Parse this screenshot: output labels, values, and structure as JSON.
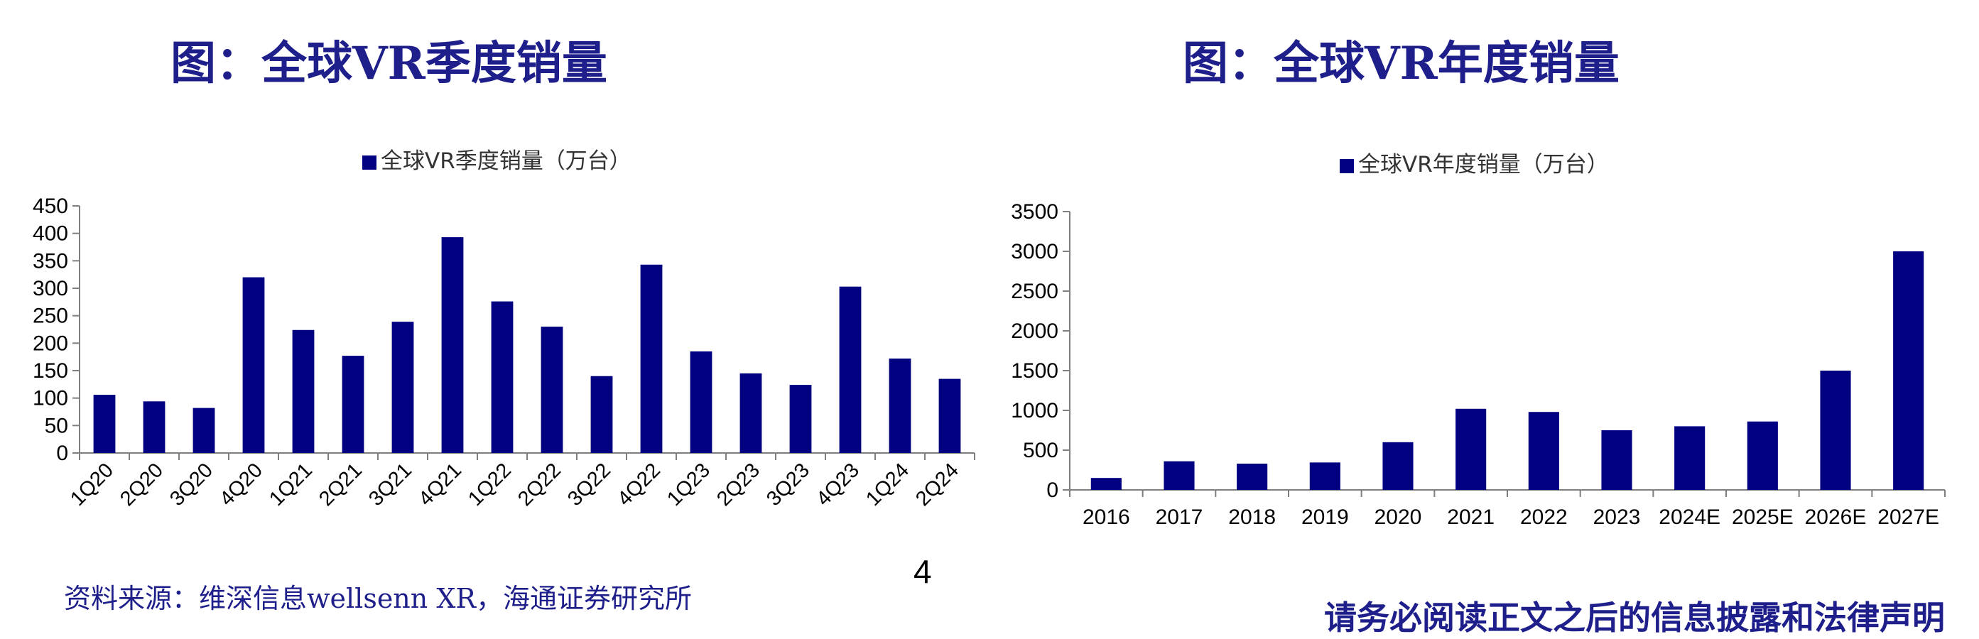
{
  "titles": {
    "left": "图：全球VR季度销量",
    "right": "图：全球VR年度销量"
  },
  "chart_data": [
    {
      "type": "bar",
      "legend": "全球VR季度销量（万台）",
      "legend_position": "top",
      "categories": [
        "1Q20",
        "2Q20",
        "3Q20",
        "4Q20",
        "1Q21",
        "2Q21",
        "3Q21",
        "4Q21",
        "1Q22",
        "2Q22",
        "3Q22",
        "4Q22",
        "1Q23",
        "2Q23",
        "3Q23",
        "4Q23",
        "1Q24",
        "2Q24"
      ],
      "series": [
        {
          "name": "全球VR季度销量（万台）",
          "values": [
            106,
            94,
            82,
            320,
            224,
            177,
            239,
            393,
            276,
            230,
            140,
            343,
            185,
            145,
            124,
            303,
            172,
            135
          ]
        }
      ],
      "ylim": [
        0,
        450
      ],
      "yticks": [
        0,
        50,
        100,
        150,
        200,
        250,
        300,
        350,
        400,
        450
      ],
      "grid": false,
      "bar_color": "#000080",
      "xlabel_rotation": -45
    },
    {
      "type": "bar",
      "legend": "全球VR年度销量（万台）",
      "legend_position": "top",
      "categories": [
        "2016",
        "2017",
        "2018",
        "2019",
        "2020",
        "2021",
        "2022",
        "2023",
        "2024E",
        "2025E",
        "2026E",
        "2027E"
      ],
      "series": [
        {
          "name": "全球VR年度销量（万台）",
          "values": [
            150,
            360,
            330,
            345,
            600,
            1020,
            980,
            750,
            800,
            860,
            1500,
            3000
          ]
        }
      ],
      "ylim": [
        0,
        3500
      ],
      "yticks": [
        0,
        500,
        1000,
        1500,
        2000,
        2500,
        3000,
        3500
      ],
      "grid": false,
      "bar_color": "#000080"
    }
  ],
  "footer": {
    "source": "资料来源：维深信息wellsenn XR，海通证券研究所",
    "page_number": "4",
    "disclaimer": "请务必阅读正文之后的信息披露和法律声明"
  },
  "colors": {
    "title": "#1f1f8c",
    "bar": "#000080",
    "axis": "#7f7f7f"
  }
}
